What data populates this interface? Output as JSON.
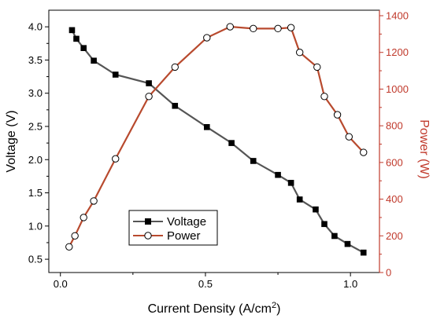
{
  "chart_data": {
    "type": "line",
    "xlabel": "Current Density (A/cm",
    "xlabel_sup": "2",
    "xlabel_close": ")",
    "ylabel_left": "Voltage (V)",
    "ylabel_right": "Power (W)",
    "xlim": [
      -0.04,
      1.1
    ],
    "ylim_left": [
      0.3,
      4.25
    ],
    "ylim_right": [
      0,
      1430
    ],
    "x_ticks": [
      "0.0",
      "0.5",
      "1.0"
    ],
    "y_left_ticks": [
      "0.5",
      "1.0",
      "1.5",
      "2.0",
      "2.5",
      "3.0",
      "3.5",
      "4.0"
    ],
    "y_right_ticks": [
      "0",
      "200",
      "400",
      "600",
      "800",
      "1000",
      "1200",
      "1400"
    ],
    "grid": false,
    "legend_position": "lower-left-center",
    "colors": {
      "voltage": "#555555",
      "power": "#b84a2e",
      "right_axis": "#c0392b"
    },
    "series": [
      {
        "name": "Voltage",
        "axis": "left",
        "marker": "filled-square",
        "x": [
          0.04,
          0.055,
          0.08,
          0.115,
          0.19,
          0.305,
          0.395,
          0.505,
          0.59,
          0.665,
          0.75,
          0.795,
          0.825,
          0.88,
          0.91,
          0.945,
          0.99,
          1.045
        ],
        "y": [
          3.95,
          3.82,
          3.68,
          3.49,
          3.28,
          3.15,
          2.81,
          2.49,
          2.25,
          1.98,
          1.77,
          1.65,
          1.4,
          1.25,
          1.03,
          0.85,
          0.73,
          0.6
        ]
      },
      {
        "name": "Power",
        "axis": "right",
        "marker": "open-circle",
        "x": [
          0.03,
          0.05,
          0.08,
          0.115,
          0.19,
          0.305,
          0.395,
          0.505,
          0.585,
          0.665,
          0.75,
          0.795,
          0.825,
          0.885,
          0.91,
          0.955,
          0.995,
          1.045
        ],
        "y": [
          140,
          200,
          300,
          390,
          620,
          960,
          1120,
          1280,
          1340,
          1330,
          1330,
          1335,
          1200,
          1120,
          960,
          860,
          740,
          655
        ]
      }
    ]
  }
}
